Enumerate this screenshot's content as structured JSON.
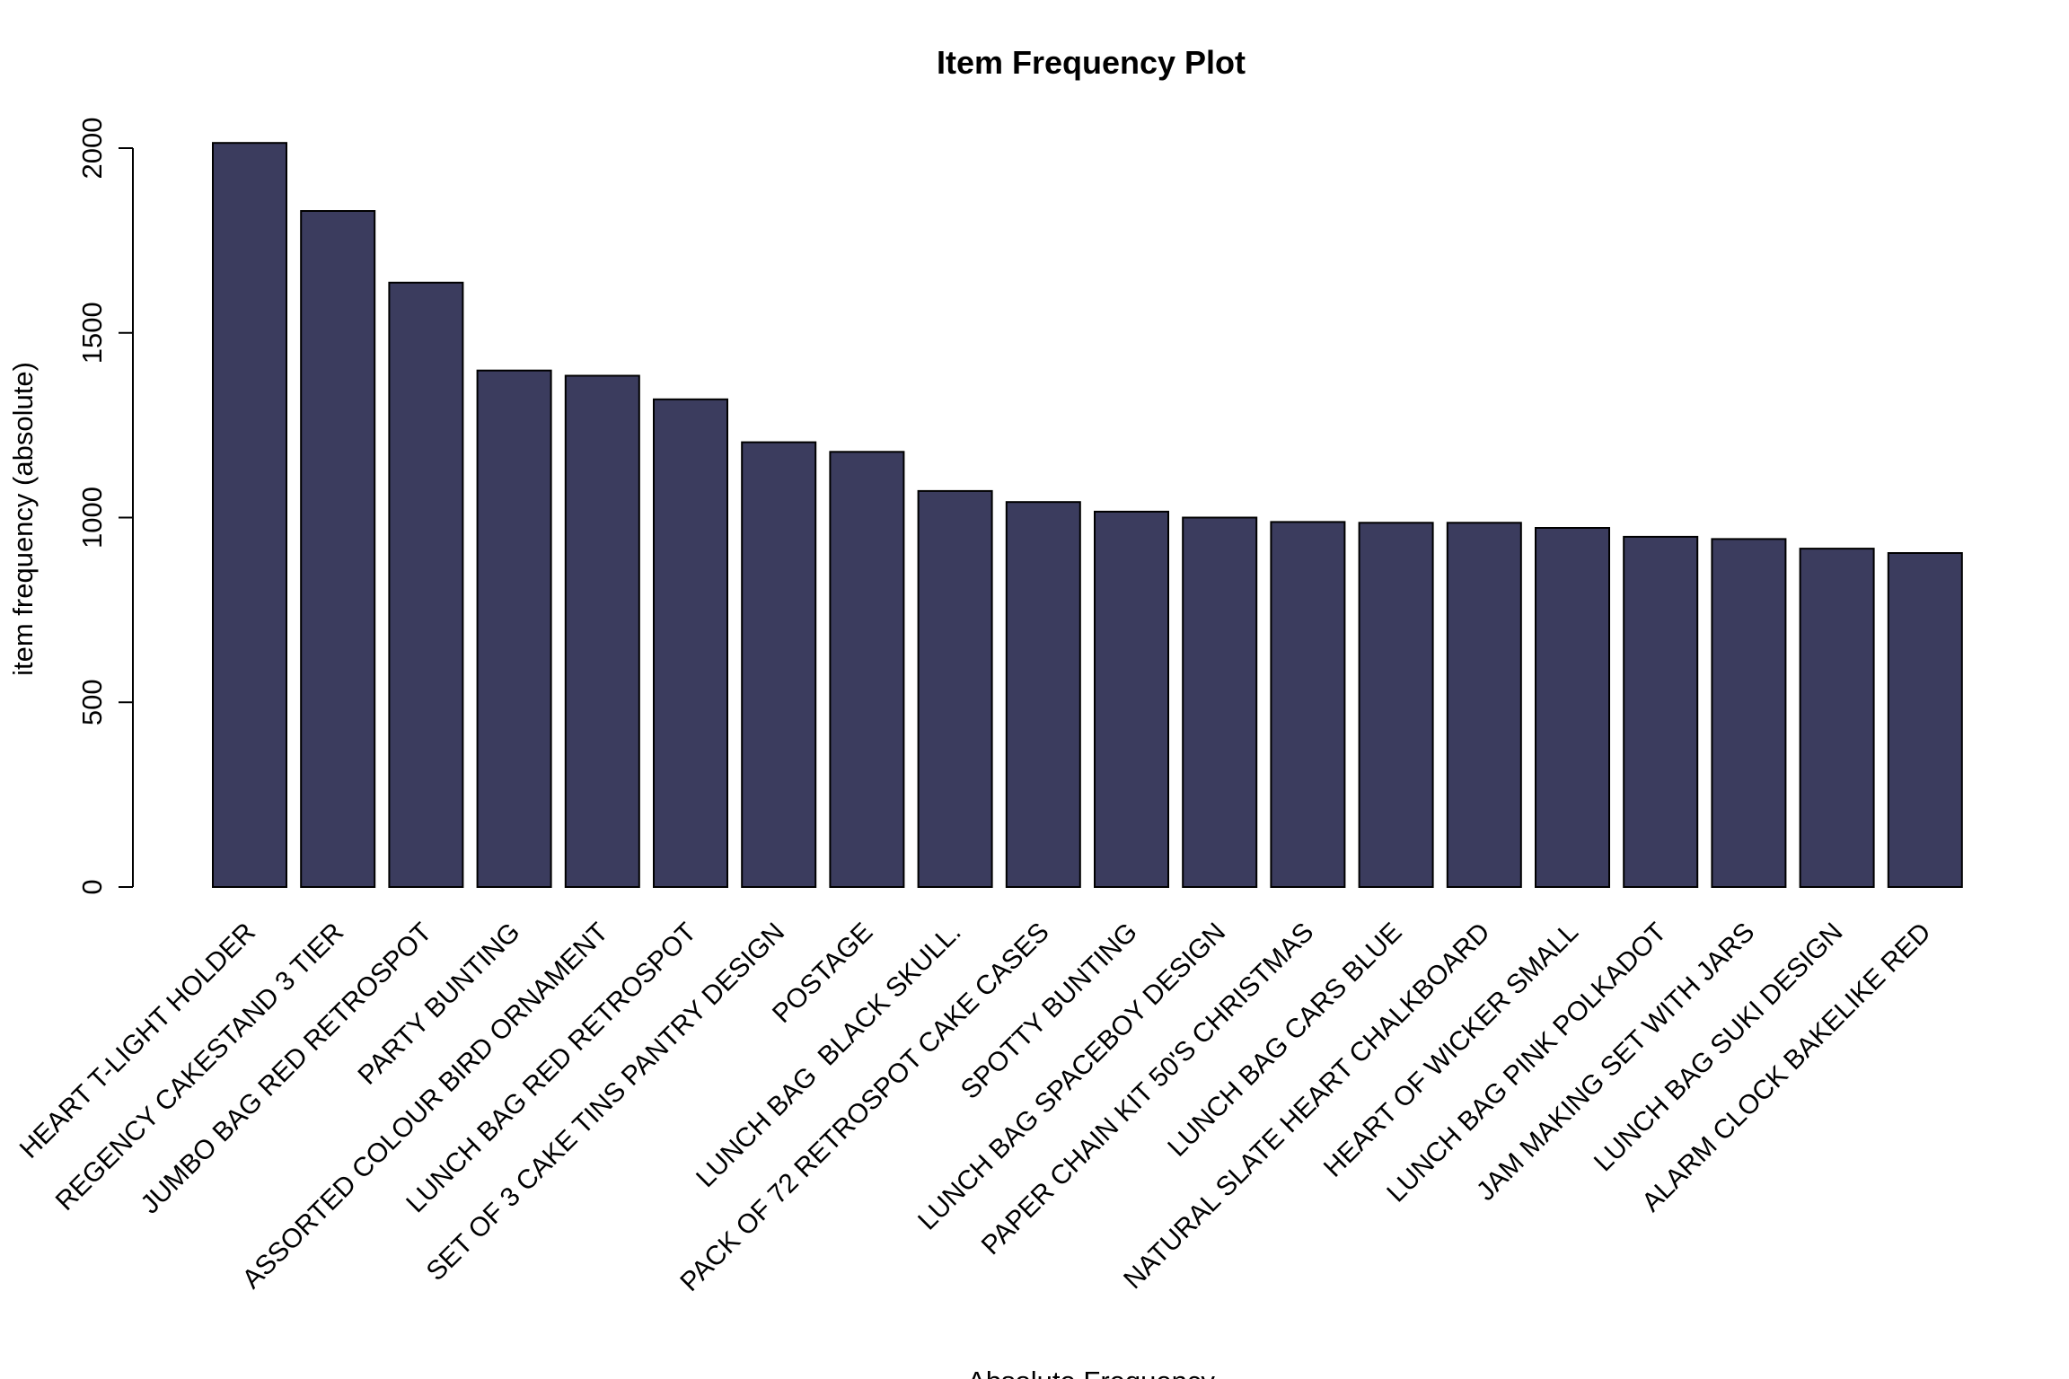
{
  "chart_data": {
    "type": "bar",
    "title": "Item Frequency Plot",
    "xlabel": "Absolute Frequency",
    "ylabel": "item frequency (absolute)",
    "ylim": [
      0,
      2000
    ],
    "yticks": [
      0,
      500,
      1000,
      1500,
      2000
    ],
    "grid": false,
    "bar_color": "#3b3c5e",
    "categories": [
      "HEART T-LIGHT HOLDER",
      "REGENCY CAKESTAND 3 TIER",
      "JUMBO BAG RED RETROSPOT",
      "PARTY BUNTING",
      "ASSORTED COLOUR BIRD ORNAMENT",
      "LUNCH BAG RED RETROSPOT",
      "SET OF 3 CAKE TINS PANTRY DESIGN",
      "POSTAGE",
      "LUNCH BAG  BLACK SKULL.",
      "PACK OF 72 RETROSPOT CAKE CASES",
      "SPOTTY BUNTING",
      "LUNCH BAG SPACEBOY DESIGN",
      "PAPER CHAIN KIT 50'S CHRISTMAS",
      "LUNCH BAG CARS BLUE",
      "NATURAL SLATE HEART CHALKBOARD",
      "HEART OF WICKER SMALL",
      "LUNCH BAG PINK POLKADOT",
      "JAM MAKING SET WITH JARS",
      "LUNCH BAG SUKI DESIGN",
      "ALARM CLOCK BAKELIKE RED"
    ],
    "values": [
      2014,
      1830,
      1636,
      1398,
      1384,
      1320,
      1204,
      1178,
      1072,
      1042,
      1016,
      1000,
      988,
      986,
      986,
      972,
      948,
      942,
      916,
      904
    ]
  }
}
